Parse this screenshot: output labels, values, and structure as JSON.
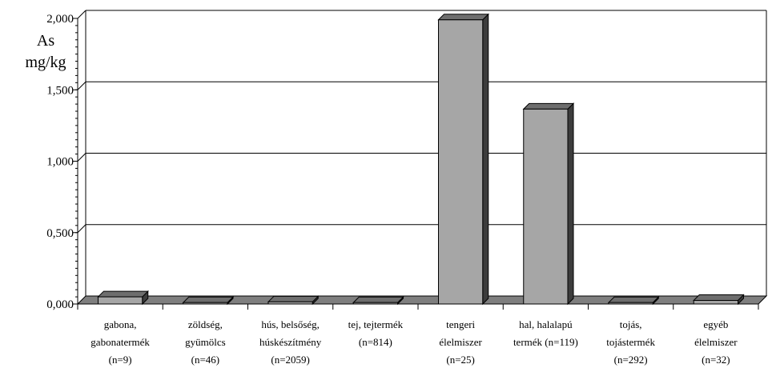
{
  "chart_data": {
    "type": "bar",
    "ylabel": [
      "As",
      "mg/kg"
    ],
    "ylim": [
      0,
      2
    ],
    "yticks": [
      "0,000",
      "0,500",
      "1,000",
      "1,500",
      "2,000"
    ],
    "grid": true,
    "categories": [
      [
        "gabona,",
        "gabonatermék",
        "(n=9)"
      ],
      [
        "zöldség,",
        "gyümölcs",
        "(n=46)"
      ],
      [
        "hús, belsőség,",
        "húskészítmény",
        "(n=2059)"
      ],
      [
        "tej, tejtermék",
        "(n=814)"
      ],
      [
        "tengeri",
        "élelmiszer",
        "(n=25)"
      ],
      [
        "hal, halalapú",
        "termék (n=119)"
      ],
      [
        "tojás,",
        "tojástermék",
        "(n=292)"
      ],
      [
        "egyéb",
        "élelmiszer",
        "(n=32)"
      ]
    ],
    "values": [
      0.05,
      0.01,
      0.015,
      0.01,
      1.99,
      1.365,
      0.01,
      0.025
    ],
    "colors": {
      "bar_front": "#a6a6a6",
      "bar_top": "#6e6e6e",
      "bar_side": "#3c3c3c",
      "floor": "#7f7f7f"
    }
  }
}
